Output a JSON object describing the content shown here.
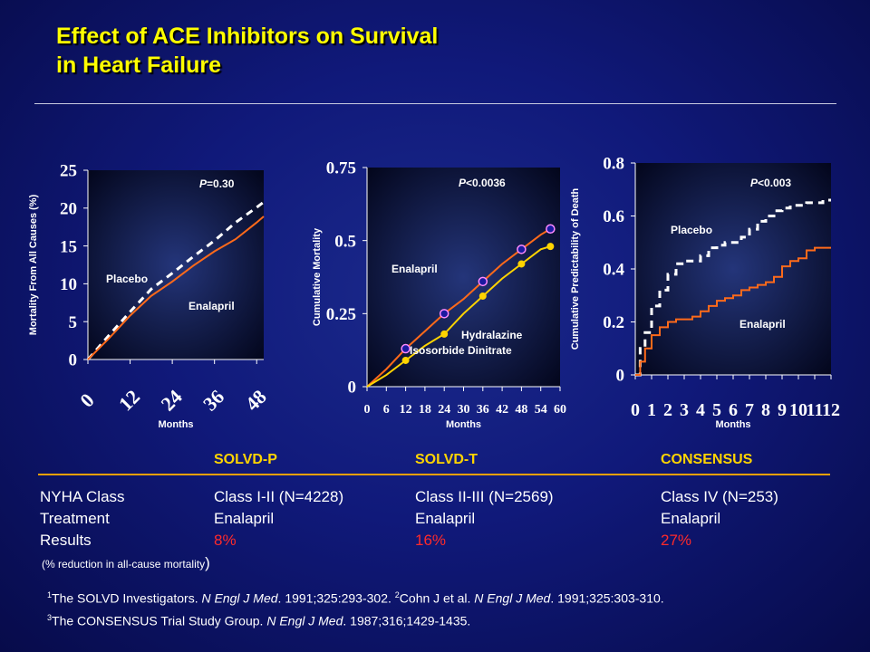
{
  "slide": {
    "title_line1": "Effect of ACE Inhibitors on Survival",
    "title_line2": "in Heart Failure"
  },
  "colors": {
    "enalapril": "#ff6a1a",
    "placebo": "#ffffff",
    "hydralazine": "#ffd400",
    "title": "#ffff00",
    "results": "#ff2a2a"
  },
  "chart_data": [
    {
      "type": "line",
      "ylabel": "Mortality From All Causes (%)",
      "xlabel": "Months",
      "ylim": [
        0,
        25
      ],
      "xlim": [
        0,
        50
      ],
      "yticks": [
        "0",
        "5",
        "10",
        "15",
        "20",
        "25"
      ],
      "xticks": [
        "0",
        "12",
        "24",
        "36",
        "48"
      ],
      "annotation": "P=0.30",
      "series": [
        {
          "name": "Placebo",
          "style": "dashed",
          "x": [
            0,
            6,
            12,
            18,
            24,
            30,
            36,
            42,
            48,
            50
          ],
          "y": [
            0,
            3.2,
            6.3,
            9.3,
            11.4,
            13.6,
            15.7,
            18.1,
            20.1,
            20.8
          ]
        },
        {
          "name": "Enalapril",
          "style": "solid",
          "x": [
            0,
            6,
            12,
            18,
            24,
            30,
            36,
            42,
            48,
            50
          ],
          "y": [
            0,
            2.8,
            5.8,
            8.4,
            10.3,
            12.4,
            14.3,
            15.9,
            18.1,
            18.9
          ]
        }
      ]
    },
    {
      "type": "line",
      "ylabel": "Cumulative Mortality",
      "xlabel": "Months",
      "ylim": [
        0,
        0.75
      ],
      "xlim": [
        0,
        60
      ],
      "yticks": [
        "0",
        "0.25",
        "0.5",
        "0.75"
      ],
      "xticks": [
        "0",
        "6",
        "12",
        "18",
        "24",
        "30",
        "36",
        "42",
        "48",
        "54",
        "60"
      ],
      "annotation": "P<0.0036",
      "series": [
        {
          "name": "Enalapril",
          "marker": "circle",
          "x": [
            0,
            6,
            12,
            18,
            24,
            30,
            36,
            42,
            48,
            54,
            57
          ],
          "y": [
            0,
            0.06,
            0.13,
            0.19,
            0.25,
            0.3,
            0.36,
            0.42,
            0.47,
            0.52,
            0.54
          ]
        },
        {
          "name": "Hydralazine Isosorbide Dinitrate",
          "marker": "dot",
          "x": [
            0,
            6,
            12,
            18,
            24,
            30,
            36,
            42,
            48,
            54,
            57
          ],
          "y": [
            0,
            0.04,
            0.09,
            0.14,
            0.18,
            0.25,
            0.31,
            0.37,
            0.42,
            0.47,
            0.48
          ]
        }
      ]
    },
    {
      "type": "line",
      "ylabel": "Cumulative Predictability of Death",
      "xlabel": "Months",
      "ylim": [
        0,
        0.8
      ],
      "xlim": [
        0,
        12
      ],
      "yticks": [
        "0",
        "0.2",
        "0.4",
        "0.6",
        "0.8"
      ],
      "xticks": [
        "0",
        "1",
        "2",
        "3",
        "4",
        "5",
        "6",
        "7",
        "8",
        "9",
        "10",
        "11",
        "12"
      ],
      "annotation": "P<0.003",
      "series": [
        {
          "name": "Placebo",
          "style": "dashed",
          "x": [
            0,
            0.3,
            0.6,
            1,
            1.5,
            2,
            2.5,
            3,
            3.5,
            4,
            4.5,
            5,
            5.5,
            6,
            6.5,
            7,
            7.5,
            8,
            8.5,
            9,
            9.5,
            10,
            10.5,
            11,
            11.5,
            12
          ],
          "y": [
            0,
            0.1,
            0.16,
            0.26,
            0.32,
            0.38,
            0.42,
            0.43,
            0.43,
            0.45,
            0.48,
            0.49,
            0.5,
            0.5,
            0.52,
            0.55,
            0.58,
            0.6,
            0.62,
            0.63,
            0.64,
            0.64,
            0.65,
            0.65,
            0.66,
            0.66
          ]
        },
        {
          "name": "Enalapril",
          "style": "solid",
          "x": [
            0,
            0.3,
            0.6,
            1,
            1.5,
            2,
            2.5,
            3,
            3.5,
            4,
            4.5,
            5,
            5.5,
            6,
            6.5,
            7,
            7.5,
            8,
            8.5,
            9,
            9.5,
            10,
            10.5,
            11,
            11.5,
            12
          ],
          "y": [
            0,
            0.05,
            0.1,
            0.15,
            0.18,
            0.2,
            0.21,
            0.21,
            0.22,
            0.24,
            0.26,
            0.28,
            0.29,
            0.3,
            0.32,
            0.33,
            0.34,
            0.35,
            0.37,
            0.41,
            0.43,
            0.44,
            0.47,
            0.48,
            0.48,
            0.48
          ]
        }
      ]
    }
  ],
  "charts_text": {
    "c1": {
      "label_placebo": "Placebo",
      "label_enalapril": "Enalapril",
      "p_italic": "P",
      "p_rest": "=0.30"
    },
    "c2": {
      "label_enalapril": "Enalapril",
      "label_hydra1": "Hydralazine",
      "label_hydra2": "Isosorbide Dinitrate",
      "p_italic": "P",
      "p_rest": "<0.0036"
    },
    "c3": {
      "label_placebo": "Placebo",
      "label_enalapril": "Enalapril",
      "p_italic": "P",
      "p_rest": "<0.003"
    }
  },
  "table": {
    "headers": [
      "SOLVD-P",
      "SOLVD-T",
      "CONSENSUS"
    ],
    "row_labels": [
      "NYHA Class",
      "Treatment",
      "Results"
    ],
    "nyha": [
      "Class I-II (N=4228)",
      "Class II-III (N=2569)",
      "Class IV (N=253)"
    ],
    "treatment": [
      "Enalapril",
      "Enalapril",
      "Enalapril"
    ],
    "results": [
      "8%",
      "16%",
      "27%"
    ],
    "results_note": "(% reduction in all-cause mortality",
    "results_note_paren": ")"
  },
  "references": {
    "ref1_sup": "1",
    "ref1_text": "The SOLVD Investigators. ",
    "ref1_journal": "N Engl J Med",
    "ref1_cite": ". 1991;325:293-302. ",
    "ref2_sup": "2",
    "ref2_text": "Cohn J et al. ",
    "ref2_journal": "N Engl J Med",
    "ref2_cite": ". 1991;325:303-310.",
    "ref3_sup": "3",
    "ref3_text": "The CONSENSUS Trial Study Group. ",
    "ref3_journal": "N Engl J Med",
    "ref3_cite": ". 1987;316;1429-1435."
  }
}
